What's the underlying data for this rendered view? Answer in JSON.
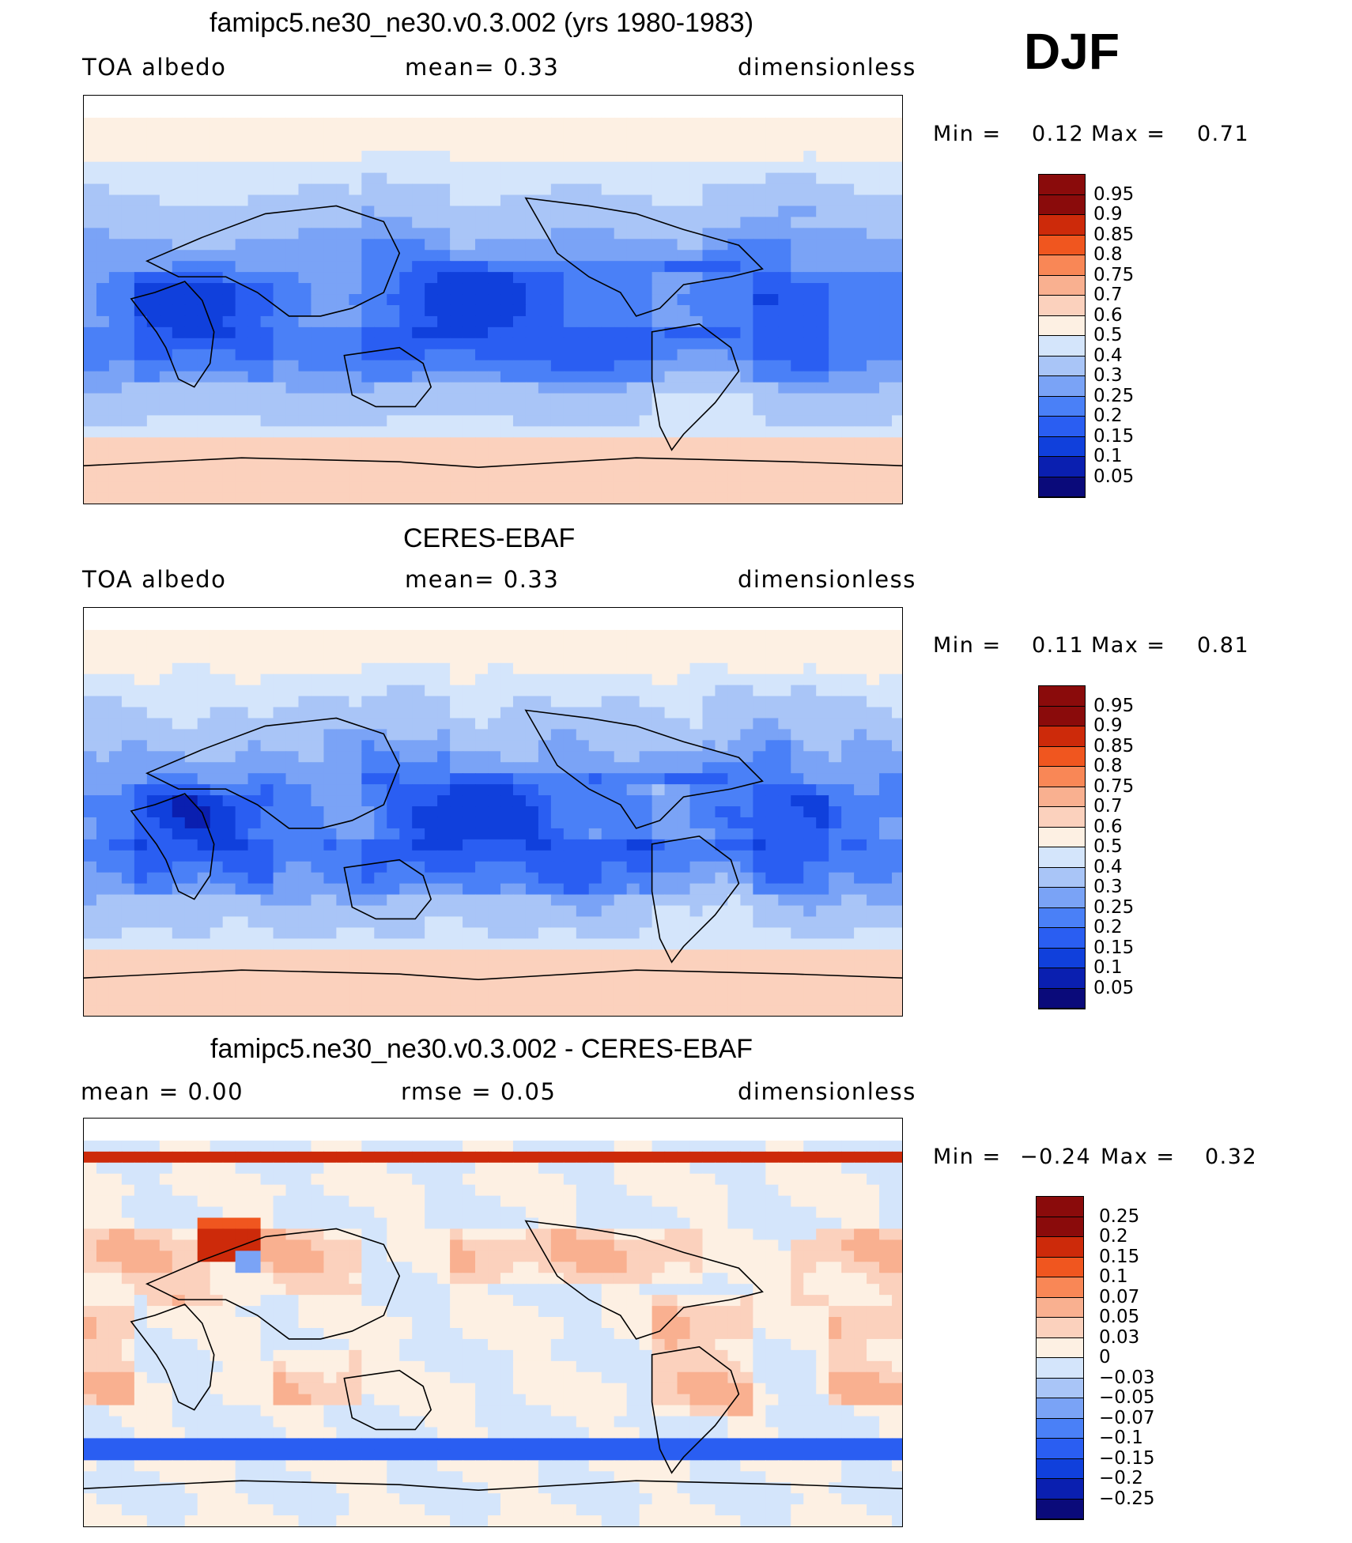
{
  "season": "DJF",
  "colors": {
    "abs_scale": [
      "#0a0a7a",
      "#0a1fb0",
      "#1040dc",
      "#2a5ef2",
      "#4a80f7",
      "#7aa3f6",
      "#a9c5f7",
      "#d4e5fb",
      "#fdf0e3",
      "#fbd1bd",
      "#f9b090",
      "#f98756",
      "#f0561f",
      "#cd2a0a",
      "#8a0b0b"
    ],
    "diff_scale": [
      "#0a0a7a",
      "#0a1fb0",
      "#1040dc",
      "#2a5ef2",
      "#4a80f7",
      "#7aa3f6",
      "#a9c5f7",
      "#d4e5fb",
      "#fdf0e3",
      "#fbd1bd",
      "#f9b090",
      "#f98756",
      "#f0561f",
      "#cd2a0a",
      "#8a0b0b"
    ]
  },
  "panels": [
    {
      "title": "famipc5.ne30_ne30.v0.3.002 (yrs 1980-1983)",
      "left_label": "TOA  albedo",
      "center_label": "mean=     0.33",
      "right_label": "dimensionless",
      "min_label": "Min  =",
      "min_value": "0.12",
      "max_label": "Max  =",
      "max_value": "0.71",
      "colorbar_labels": [
        "0.95",
        "0.9",
        "0.85",
        "0.8",
        "0.75",
        "0.7",
        "0.6",
        "0.5",
        "0.4",
        "0.3",
        "0.25",
        "0.2",
        "0.15",
        "0.1",
        "0.05"
      ],
      "kind": "model"
    },
    {
      "title": "CERES-EBAF",
      "left_label": "TOA  albedo",
      "center_label": "mean=     0.33",
      "right_label": "dimensionless",
      "min_label": "Min  =",
      "min_value": "0.11",
      "max_label": "Max  =",
      "max_value": "0.81",
      "colorbar_labels": [
        "0.95",
        "0.9",
        "0.85",
        "0.8",
        "0.75",
        "0.7",
        "0.6",
        "0.5",
        "0.4",
        "0.3",
        "0.25",
        "0.2",
        "0.15",
        "0.1",
        "0.05"
      ],
      "kind": "obs"
    },
    {
      "title": "famipc5.ne30_ne30.v0.3.002 - CERES-EBAF",
      "left_label": "mean  =     0.00",
      "center_label": "rmse  =     0.05",
      "right_label": "dimensionless",
      "min_label": "Min  =",
      "min_value": "−0.24",
      "max_label": "Max  =",
      "max_value": "0.32",
      "colorbar_labels": [
        "0.25",
        "0.2",
        "0.15",
        "0.1",
        "0.07",
        "0.05",
        "0.03",
        "0",
        "−0.03",
        "−0.05",
        "−0.07",
        "−0.1",
        "−0.15",
        "−0.2",
        "−0.25"
      ],
      "kind": "diff"
    }
  ]
}
